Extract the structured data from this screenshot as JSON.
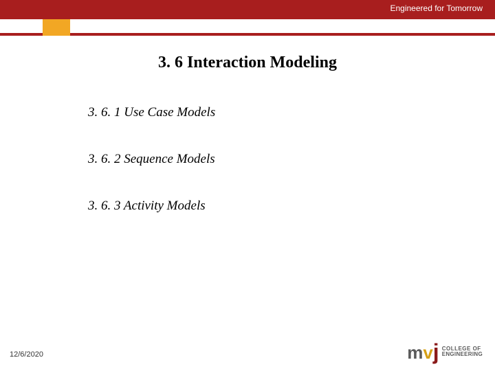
{
  "header": {
    "tagline": "Engineered for Tomorrow",
    "colors": {
      "topbar": "#a81e1e",
      "accent": "#f2a724",
      "underline": "#a81e1e"
    }
  },
  "slide": {
    "title": "3. 6  Interaction Modeling",
    "items": [
      "3. 6. 1 Use Case Models",
      "3. 6. 2  Sequence Models",
      "3. 6. 3 Activity Models"
    ]
  },
  "footer": {
    "date": "12/6/2020",
    "logo": {
      "m": "m",
      "v": "v",
      "j": "j",
      "line1": "COLLEGE OF",
      "line2": "ENGINEERING",
      "sub": ""
    }
  },
  "typography": {
    "title_fontsize": 24,
    "item_fontsize": 19,
    "tagline_fontsize": 12,
    "date_fontsize": 11
  }
}
